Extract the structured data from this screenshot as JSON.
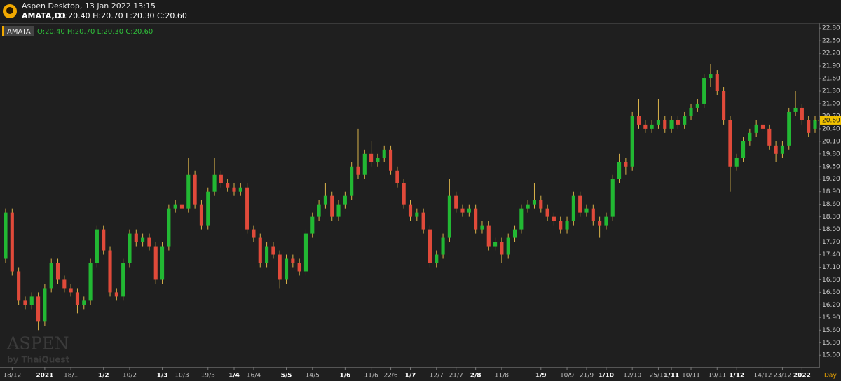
{
  "header": {
    "app_title": "Aspen Desktop, 13 Jan 2022 13:15",
    "symbol_line": "AMATA,D1",
    "ohlc_line": "O:20.40 H:20.70 L:20.30 C:20.60"
  },
  "chart_data": {
    "type": "candlestick",
    "symbol": "AMATA",
    "ohlc_text": "O:20.40 H:20.70 L:20.30 C:20.60",
    "timeframe": "Day",
    "watermark": "ASPEN",
    "watermark_sub": "by ThaiQuest",
    "categories": [
      null,
      "18/12",
      null,
      null,
      null,
      null,
      "2021",
      null,
      null,
      null,
      "18/1",
      null,
      null,
      null,
      null,
      "1/2",
      null,
      null,
      null,
      "10/2",
      null,
      null,
      null,
      null,
      "1/3",
      null,
      null,
      "10/3",
      null,
      null,
      null,
      "19/3",
      null,
      null,
      null,
      "1/4",
      null,
      null,
      "16/4",
      null,
      null,
      null,
      null,
      "5/5",
      null,
      null,
      null,
      "14/5",
      null,
      null,
      null,
      null,
      "1/6",
      null,
      null,
      null,
      "11/6",
      null,
      null,
      "22/6",
      null,
      null,
      "1/7",
      null,
      null,
      null,
      "12/7",
      null,
      null,
      "21/7",
      null,
      null,
      "2/8",
      null,
      null,
      null,
      "11/8",
      null,
      null,
      null,
      null,
      null,
      "1/9",
      null,
      null,
      null,
      "10/9",
      null,
      null,
      "21/9",
      null,
      null,
      "1/10",
      null,
      null,
      null,
      "12/10",
      null,
      null,
      null,
      "25/10",
      null,
      "1/11",
      null,
      null,
      "10/11",
      null,
      null,
      null,
      "19/11",
      null,
      null,
      "1/12",
      null,
      null,
      null,
      "14/12",
      null,
      null,
      "23/12",
      null,
      null,
      "2022",
      null,
      null
    ],
    "open": [
      17.3,
      18.4,
      17.0,
      16.3,
      16.2,
      16.4,
      15.8,
      16.6,
      17.2,
      16.8,
      16.6,
      16.5,
      16.2,
      16.3,
      17.2,
      18.0,
      17.5,
      16.5,
      16.4,
      17.2,
      17.9,
      17.7,
      17.8,
      17.6,
      16.8,
      17.6,
      18.5,
      18.6,
      18.5,
      19.3,
      18.6,
      18.1,
      18.9,
      19.3,
      19.1,
      19.0,
      18.9,
      19.0,
      18.0,
      17.8,
      17.2,
      17.6,
      17.4,
      16.8,
      17.3,
      17.2,
      17.0,
      17.9,
      18.3,
      18.6,
      18.8,
      18.3,
      18.6,
      18.8,
      19.5,
      19.3,
      19.8,
      19.6,
      19.7,
      19.9,
      19.4,
      19.1,
      18.6,
      18.3,
      18.4,
      18.0,
      17.2,
      17.4,
      17.8,
      18.8,
      18.5,
      18.4,
      18.5,
      18.0,
      18.1,
      17.6,
      17.7,
      17.4,
      17.8,
      18.0,
      18.5,
      18.6,
      18.7,
      18.5,
      18.3,
      18.2,
      18.0,
      18.2,
      18.8,
      18.4,
      18.5,
      18.2,
      18.1,
      18.3,
      19.2,
      19.6,
      19.5,
      20.7,
      20.5,
      20.4,
      20.5,
      20.6,
      20.4,
      20.6,
      20.5,
      20.7,
      20.9,
      21.0,
      21.6,
      21.7,
      21.3,
      20.6,
      19.5,
      19.7,
      20.1,
      20.3,
      20.5,
      20.4,
      20.0,
      19.8,
      20.0,
      20.8,
      20.9,
      20.6,
      20.4
    ],
    "high": [
      18.5,
      18.5,
      17.1,
      16.4,
      16.5,
      16.5,
      16.7,
      17.3,
      17.3,
      16.9,
      16.7,
      16.6,
      16.4,
      17.3,
      18.1,
      18.1,
      17.6,
      16.6,
      17.3,
      18.0,
      18.0,
      17.9,
      17.9,
      17.7,
      17.7,
      18.6,
      18.7,
      18.8,
      19.7,
      19.4,
      18.7,
      19.0,
      19.7,
      19.4,
      19.2,
      19.1,
      19.1,
      19.1,
      18.1,
      17.9,
      17.7,
      17.7,
      17.5,
      17.4,
      17.4,
      17.3,
      18.0,
      18.4,
      18.7,
      19.1,
      18.9,
      18.7,
      18.9,
      19.6,
      20.4,
      19.9,
      20.1,
      19.8,
      20.0,
      20.0,
      19.5,
      19.2,
      18.7,
      18.5,
      18.5,
      18.1,
      17.5,
      17.9,
      19.2,
      18.9,
      18.6,
      18.6,
      18.6,
      18.2,
      18.2,
      17.8,
      17.8,
      17.9,
      18.1,
      18.6,
      18.7,
      19.1,
      18.8,
      18.6,
      18.4,
      18.3,
      18.3,
      18.9,
      18.9,
      18.6,
      18.6,
      18.3,
      18.4,
      19.3,
      19.8,
      19.7,
      20.8,
      21.1,
      20.6,
      20.6,
      21.1,
      20.7,
      20.7,
      20.7,
      20.8,
      21.0,
      21.1,
      21.7,
      21.95,
      21.8,
      21.4,
      20.7,
      19.8,
      20.2,
      20.4,
      20.6,
      20.6,
      20.5,
      20.1,
      20.1,
      20.9,
      21.3,
      21.0,
      20.7,
      20.7
    ],
    "low": [
      17.2,
      16.9,
      16.2,
      16.1,
      16.1,
      15.6,
      15.7,
      16.5,
      16.7,
      16.5,
      16.4,
      16.0,
      16.1,
      16.2,
      17.1,
      17.4,
      16.4,
      16.3,
      16.3,
      17.1,
      17.6,
      17.6,
      17.5,
      16.7,
      16.7,
      17.5,
      18.4,
      18.4,
      18.4,
      18.5,
      18.0,
      18.0,
      18.8,
      19.0,
      18.9,
      18.8,
      18.8,
      17.9,
      17.7,
      17.1,
      17.1,
      17.3,
      16.6,
      16.7,
      17.1,
      16.9,
      16.9,
      17.8,
      18.2,
      18.5,
      18.2,
      18.2,
      18.5,
      18.7,
      19.2,
      19.2,
      19.5,
      19.5,
      19.6,
      19.3,
      19.0,
      18.5,
      18.2,
      18.2,
      17.9,
      17.1,
      17.1,
      17.3,
      17.7,
      18.4,
      18.3,
      18.3,
      17.9,
      17.9,
      17.5,
      17.5,
      17.2,
      17.3,
      17.7,
      17.9,
      18.4,
      18.5,
      18.4,
      18.2,
      18.1,
      17.9,
      17.9,
      18.1,
      18.3,
      18.3,
      18.1,
      17.8,
      18.0,
      18.2,
      19.1,
      19.3,
      19.4,
      20.4,
      20.3,
      20.3,
      20.4,
      20.3,
      20.3,
      20.4,
      20.4,
      20.6,
      20.8,
      20.9,
      21.4,
      21.2,
      20.5,
      18.9,
      19.4,
      19.6,
      20.0,
      20.2,
      20.3,
      19.9,
      19.6,
      19.7,
      19.9,
      20.7,
      20.5,
      20.2,
      20.3
    ],
    "close": [
      18.4,
      17.0,
      16.3,
      16.2,
      16.4,
      15.8,
      16.6,
      17.2,
      16.8,
      16.6,
      16.5,
      16.2,
      16.3,
      17.2,
      18.0,
      17.5,
      16.5,
      16.4,
      17.2,
      17.9,
      17.7,
      17.8,
      17.6,
      16.8,
      17.6,
      18.5,
      18.6,
      18.5,
      19.3,
      18.6,
      18.1,
      18.9,
      19.3,
      19.1,
      19.0,
      18.9,
      19.0,
      18.0,
      17.8,
      17.2,
      17.6,
      17.4,
      16.8,
      17.3,
      17.2,
      17.0,
      17.9,
      18.3,
      18.6,
      18.8,
      18.3,
      18.6,
      18.8,
      19.5,
      19.3,
      19.8,
      19.6,
      19.7,
      19.9,
      19.4,
      19.1,
      18.6,
      18.3,
      18.4,
      18.0,
      17.2,
      17.4,
      17.8,
      18.8,
      18.5,
      18.4,
      18.5,
      18.0,
      18.1,
      17.6,
      17.7,
      17.4,
      17.8,
      18.0,
      18.5,
      18.6,
      18.7,
      18.5,
      18.3,
      18.2,
      18.0,
      18.2,
      18.8,
      18.4,
      18.5,
      18.2,
      18.1,
      18.3,
      19.2,
      19.6,
      19.5,
      20.7,
      20.5,
      20.4,
      20.5,
      20.6,
      20.4,
      20.6,
      20.5,
      20.7,
      20.9,
      21.0,
      21.6,
      21.7,
      21.3,
      20.6,
      19.5,
      19.7,
      20.1,
      20.3,
      20.5,
      20.4,
      20.0,
      19.8,
      20.0,
      20.8,
      20.9,
      20.6,
      20.3,
      20.6
    ],
    "up_color": "#22b833",
    "down_color": "#e04a3a",
    "wick_color": "#d8b24a",
    "ylim": [
      14.72,
      22.92
    ],
    "yticks": [
      {
        "value": 15.0,
        "label": "15.00"
      },
      {
        "value": 15.3,
        "label": "15.30"
      },
      {
        "value": 15.6,
        "label": "15.60"
      },
      {
        "value": 15.9,
        "label": "15.90"
      },
      {
        "value": 16.2,
        "label": "16.20"
      },
      {
        "value": 16.5,
        "label": "16.50"
      },
      {
        "value": 16.8,
        "label": "16.80"
      },
      {
        "value": 17.1,
        "label": "17.10"
      },
      {
        "value": 17.4,
        "label": "17.40"
      },
      {
        "value": 17.7,
        "label": "17.70"
      },
      {
        "value": 18.0,
        "label": "18.00"
      },
      {
        "value": 18.3,
        "label": "18.30"
      },
      {
        "value": 18.6,
        "label": "18.60"
      },
      {
        "value": 18.9,
        "label": "18.90"
      },
      {
        "value": 19.2,
        "label": "19.20"
      },
      {
        "value": 19.5,
        "label": "19.50"
      },
      {
        "value": 19.8,
        "label": "19.80"
      },
      {
        "value": 20.1,
        "label": "20.10"
      },
      {
        "value": 20.4,
        "label": "20.40"
      },
      {
        "value": 20.7,
        "label": "20.70"
      },
      {
        "value": 21.0,
        "label": "21.00"
      },
      {
        "value": 21.3,
        "label": "21.30"
      },
      {
        "value": 21.6,
        "label": "21.60"
      },
      {
        "value": 21.9,
        "label": "21.90"
      },
      {
        "value": 22.2,
        "label": "22.20"
      },
      {
        "value": 22.5,
        "label": "22.50"
      },
      {
        "value": 22.8,
        "label": "22.80"
      }
    ],
    "last_price": {
      "value": 20.6,
      "label": "20.60"
    },
    "grid": false
  }
}
